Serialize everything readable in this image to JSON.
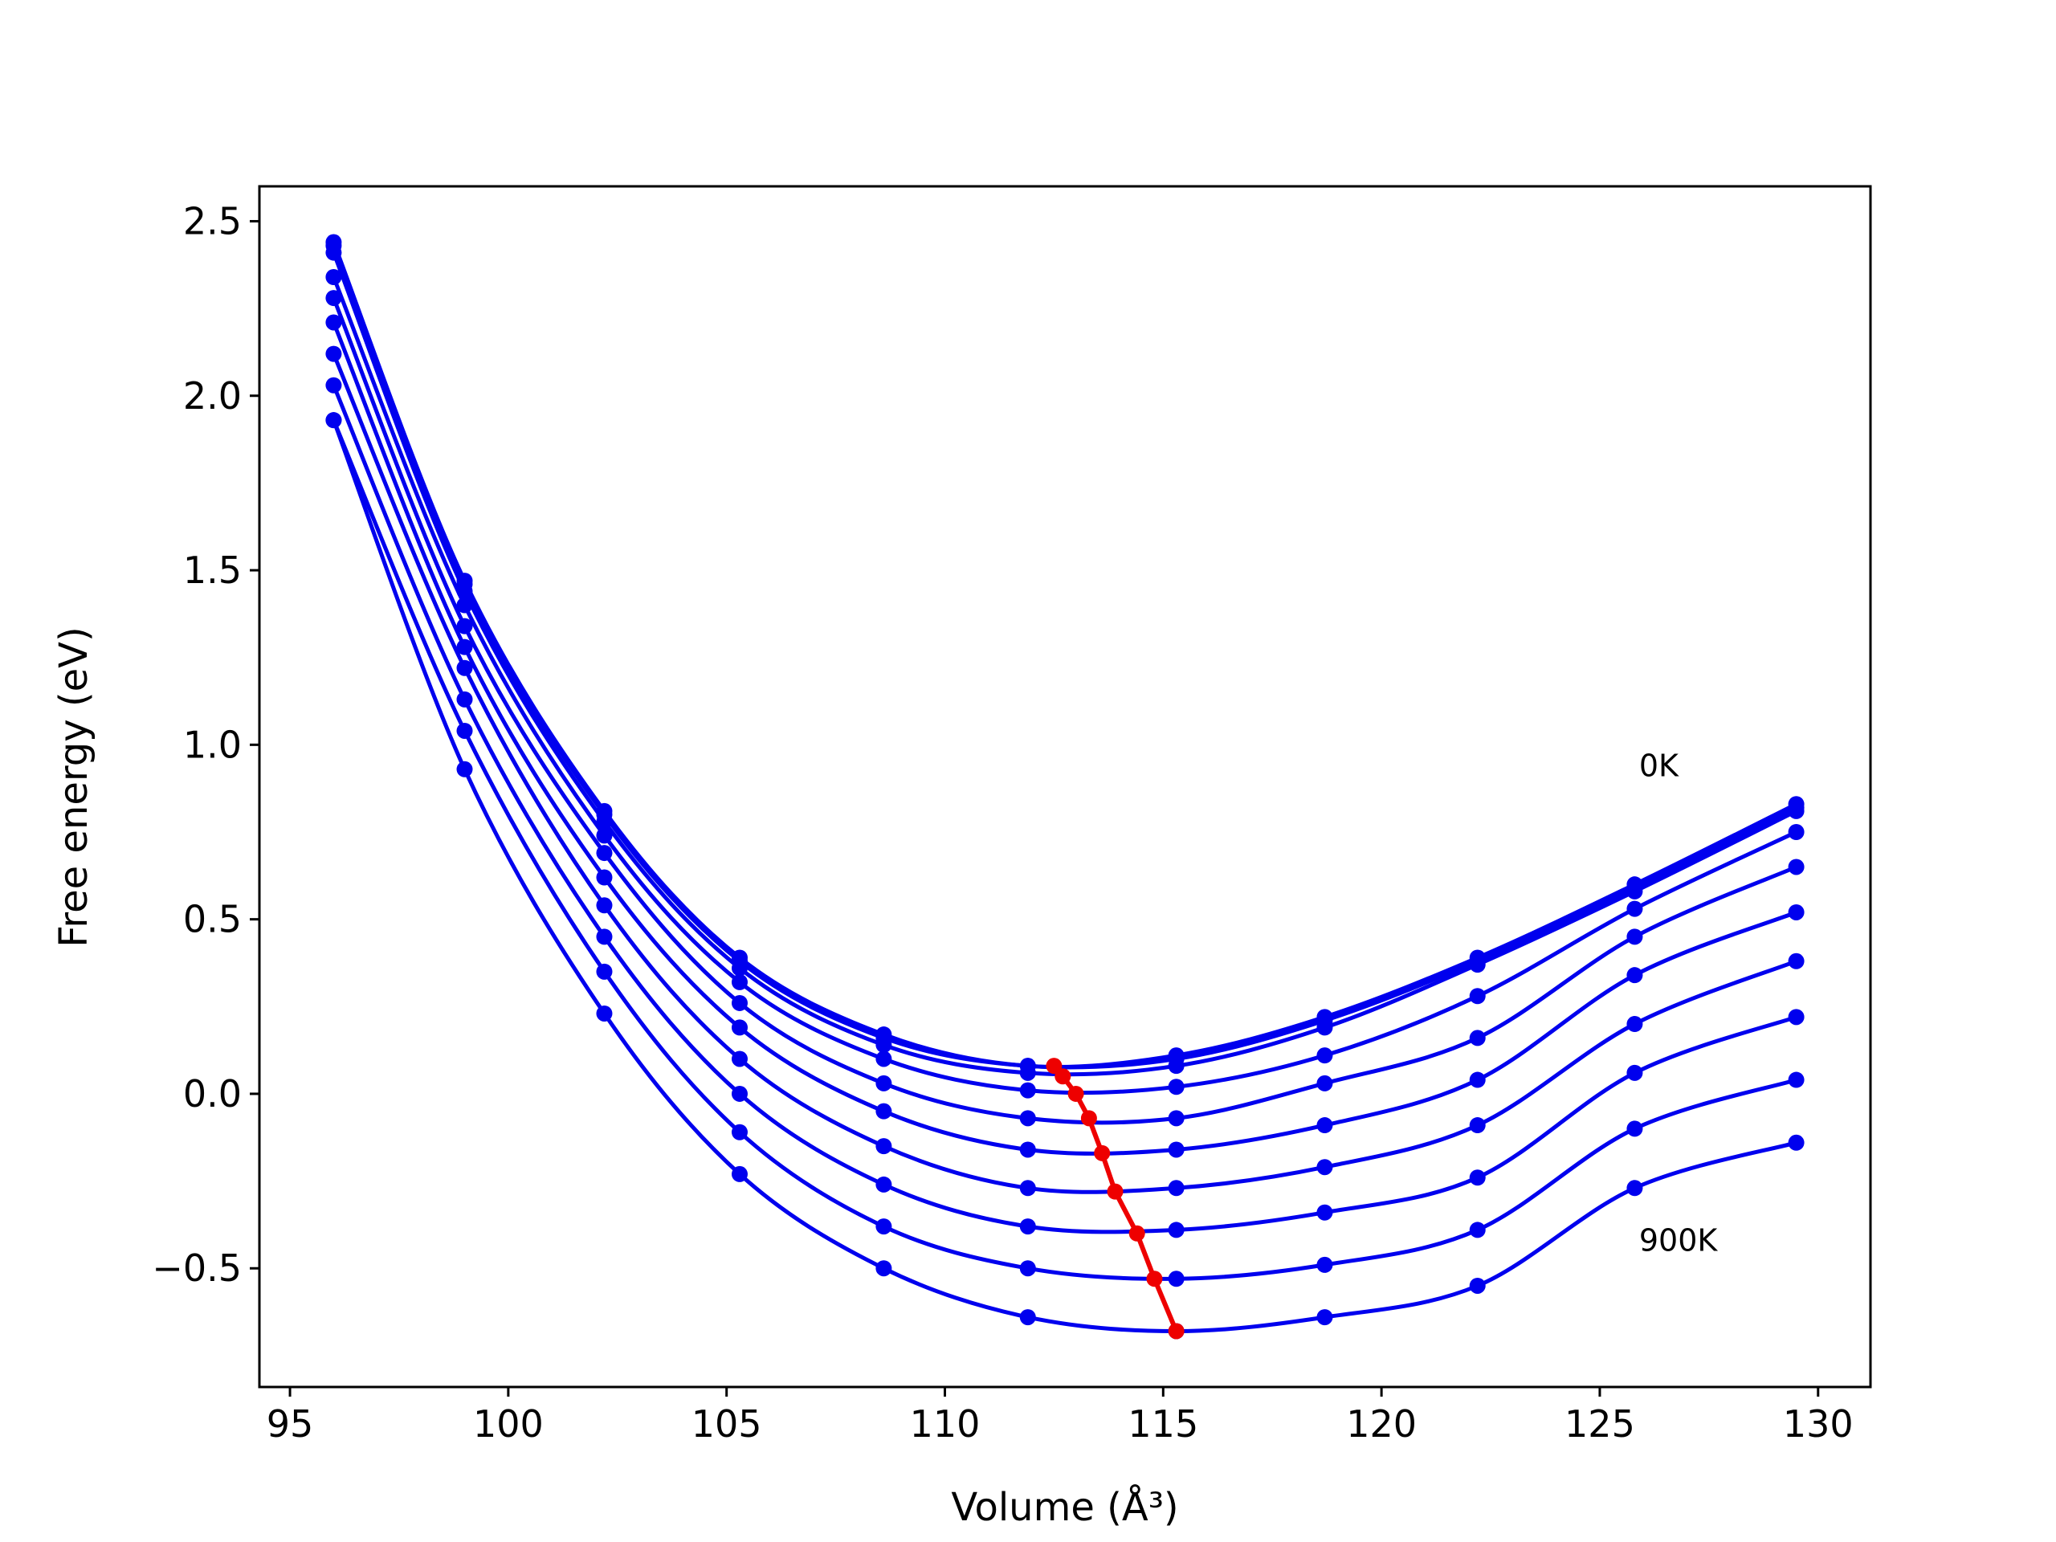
{
  "chart_data": {
    "type": "line",
    "xlabel": "Volume (Å³)",
    "ylabel": "Free energy (eV)",
    "xlim": [
      94.3,
      131.2
    ],
    "ylim": [
      -0.84,
      2.6
    ],
    "x_ticks": [
      95,
      100,
      105,
      110,
      115,
      120,
      125,
      130
    ],
    "x_tick_labels": [
      "95",
      "100",
      "105",
      "110",
      "115",
      "120",
      "125",
      "130"
    ],
    "y_ticks": [
      -0.5,
      0.0,
      0.5,
      1.0,
      1.5,
      2.0,
      2.5
    ],
    "y_tick_labels": [
      "−0.5",
      "0.0",
      "0.5",
      "1.0",
      "1.5",
      "2.0",
      "2.5"
    ],
    "grid": false,
    "x": [
      96.0,
      99.0,
      102.2,
      105.3,
      108.6,
      111.9,
      115.3,
      118.7,
      122.2,
      125.8,
      129.5
    ],
    "series": [
      {
        "color": "#0000ee",
        "values": [
          2.44,
          1.47,
          0.81,
          0.39,
          0.17,
          0.08,
          0.11,
          0.22,
          0.39,
          0.6,
          0.83
        ]
      },
      {
        "color": "#0000ee",
        "values": [
          2.43,
          1.46,
          0.8,
          0.38,
          0.16,
          0.08,
          0.1,
          0.21,
          0.38,
          0.59,
          0.82
        ]
      },
      {
        "color": "#0000ee",
        "values": [
          2.41,
          1.44,
          0.78,
          0.36,
          0.14,
          0.06,
          0.08,
          0.19,
          0.37,
          0.58,
          0.81
        ]
      },
      {
        "color": "#0000ee",
        "values": [
          2.34,
          1.4,
          0.74,
          0.32,
          0.1,
          0.01,
          0.02,
          0.11,
          0.28,
          0.53,
          0.75
        ]
      },
      {
        "color": "#0000ee",
        "values": [
          2.28,
          1.34,
          0.69,
          0.26,
          0.03,
          -0.07,
          -0.07,
          0.03,
          0.16,
          0.45,
          0.65
        ]
      },
      {
        "color": "#0000ee",
        "values": [
          2.21,
          1.28,
          0.62,
          0.19,
          -0.05,
          -0.16,
          -0.16,
          -0.09,
          0.04,
          0.34,
          0.52
        ]
      },
      {
        "color": "#0000ee",
        "values": [
          2.12,
          1.22,
          0.54,
          0.1,
          -0.15,
          -0.27,
          -0.27,
          -0.21,
          -0.09,
          0.2,
          0.38
        ]
      },
      {
        "color": "#0000ee",
        "values": [
          2.03,
          1.13,
          0.45,
          0.0,
          -0.26,
          -0.38,
          -0.39,
          -0.34,
          -0.24,
          0.06,
          0.22
        ]
      },
      {
        "color": "#0000ee",
        "values": [
          1.93,
          1.04,
          0.35,
          -0.11,
          -0.38,
          -0.5,
          -0.53,
          -0.49,
          -0.39,
          -0.1,
          0.04
        ]
      },
      {
        "color": "#0000ee",
        "values": [
          1.93,
          0.93,
          0.23,
          -0.23,
          -0.5,
          -0.64,
          -0.68,
          -0.64,
          -0.55,
          -0.27,
          -0.14
        ]
      }
    ],
    "minima_path": {
      "color": "#ee0000",
      "x": [
        112.5,
        112.7,
        113.0,
        113.3,
        113.6,
        113.9,
        114.4,
        114.8,
        115.3
      ],
      "y": [
        0.08,
        0.05,
        0.0,
        -0.07,
        -0.17,
        -0.28,
        -0.4,
        -0.53,
        -0.68
      ]
    },
    "annotations": [
      {
        "text": "0K",
        "x": 125.9,
        "y": 0.91
      },
      {
        "text": "900K",
        "x": 125.9,
        "y": -0.45
      }
    ]
  }
}
